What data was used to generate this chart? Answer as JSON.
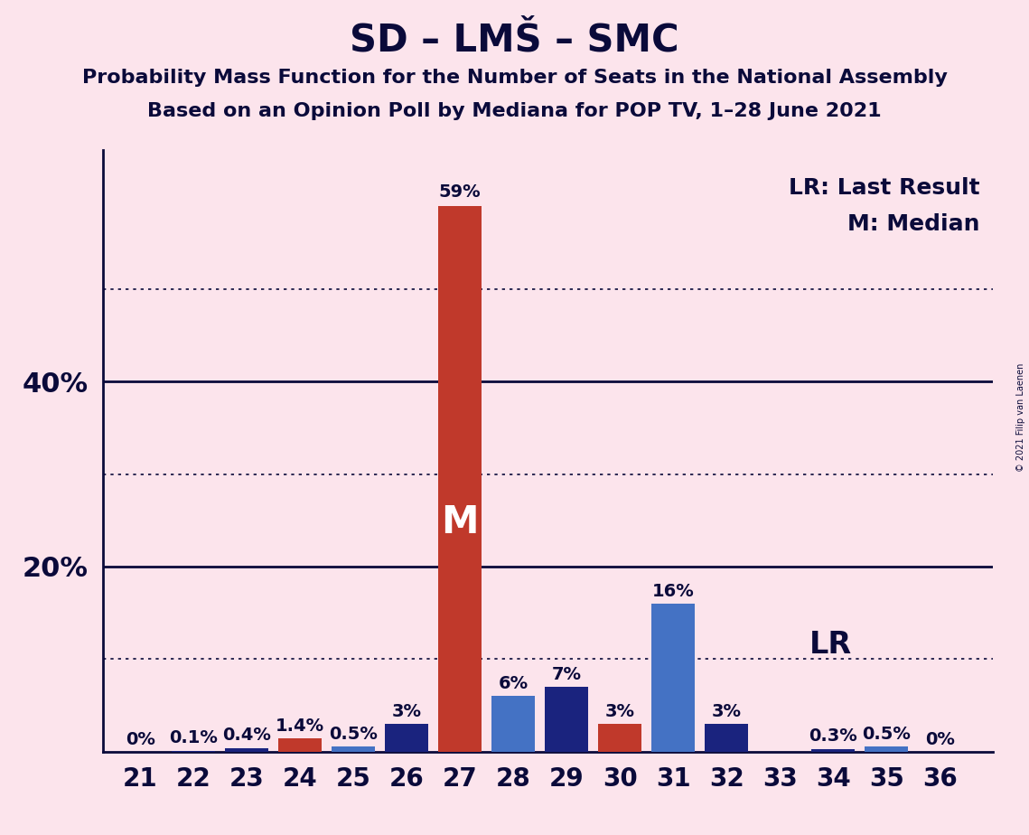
{
  "title": "SD – LMŠ – SMC",
  "subtitle1": "Probability Mass Function for the Number of Seats in the National Assembly",
  "subtitle2": "Based on an Opinion Poll by Mediana for POP TV, 1–28 June 2021",
  "copyright": "© 2021 Filip van Laenen",
  "seats": [
    21,
    22,
    23,
    24,
    25,
    26,
    27,
    28,
    29,
    30,
    31,
    32,
    33,
    34,
    35,
    36
  ],
  "probabilities": [
    0.0,
    0.1,
    0.4,
    1.4,
    0.5,
    3.0,
    59.0,
    6.0,
    7.0,
    3.0,
    16.0,
    3.0,
    0.0,
    0.3,
    0.5,
    0.0
  ],
  "prob_labels": [
    "0%",
    "0.1%",
    "0.4%",
    "1.4%",
    "0.5%",
    "3%",
    "59%",
    "6%",
    "7%",
    "3%",
    "16%",
    "3%",
    "",
    "0.3%",
    "0.5%",
    "0%"
  ],
  "last_result_seat": 33,
  "median_seat": 27,
  "bar_colors": [
    "#1a237e",
    "#1a237e",
    "#1a237e",
    "#c0392b",
    "#4472c4",
    "#1a237e",
    "#c0392b",
    "#4472c4",
    "#1a237e",
    "#c0392b",
    "#4472c4",
    "#1a237e",
    "#c0392b",
    "#1a237e",
    "#4472c4",
    "#1a237e"
  ],
  "background_color": "#fce4ec",
  "ylim": [
    0,
    65
  ],
  "ytick_positions": [
    0,
    10,
    20,
    30,
    40,
    50,
    60
  ],
  "ytick_labels_map": {
    "0": "",
    "10": "",
    "20": "20%",
    "30": "",
    "40": "40%",
    "50": "",
    "60": ""
  },
  "dotted_lines": [
    10,
    30,
    50
  ],
  "solid_lines": [
    20,
    40
  ],
  "legend_lr": "LR: Last Result",
  "legend_m": "M: Median",
  "lr_label": "LR",
  "m_label": "M",
  "title_fontsize": 30,
  "subtitle_fontsize": 16,
  "axis_tick_fontsize": 20,
  "annotation_fontsize": 14,
  "ytick_fontsize": 22,
  "legend_fontsize": 18,
  "lr_fontsize": 24,
  "m_fontsize": 30
}
